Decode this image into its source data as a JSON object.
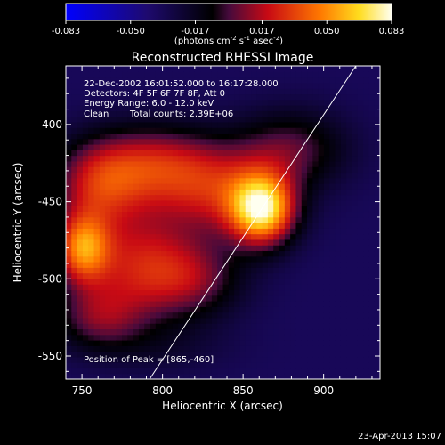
{
  "chart_data": {
    "type": "heatmap",
    "title": "Reconstructed RHESSI Image",
    "xlabel": "Heliocentric X (arcsec)",
    "ylabel": "Heliocentric Y (arcsec)",
    "xlim": [
      740,
      935
    ],
    "ylim": [
      -565,
      -362
    ],
    "x_ticks": [
      750,
      800,
      850,
      900
    ],
    "y_ticks": [
      -400,
      -450,
      -500,
      -550
    ],
    "colorbar": {
      "min": -0.083,
      "max": 0.083,
      "ticks": [
        "-0.083",
        "-0.050",
        "-0.017",
        "0.017",
        "0.050",
        "0.083"
      ],
      "label_main": "(photons cm",
      "label_sup1": "-2",
      "label_mid": " s",
      "label_sup2": "-1",
      "label_tail": " asec",
      "label_sup3": "-2",
      "label_close": ")"
    },
    "annotations": {
      "time": "22-Dec-2002 16:01:52.000 to 16:17:28.000",
      "detectors": "Detectors: 4F 5F 6F 7F 8F, Att 0",
      "energy": "Energy Range: 6.0 - 12.0 keV",
      "clean": "Clean",
      "counts": "Total counts: 2.39E+06",
      "peak": "Position of Peak = [865,-460]"
    },
    "peak": {
      "x": 865,
      "y": -460
    },
    "limb_line": [
      [
        792,
        -565
      ],
      [
        920,
        -362
      ]
    ],
    "sources": [
      {
        "x": 862,
        "y": -455,
        "amp": 0.095,
        "sx": 14,
        "sy": 16
      },
      {
        "x": 835,
        "y": -445,
        "amp": 0.045,
        "sx": 28,
        "sy": 20
      },
      {
        "x": 795,
        "y": -425,
        "amp": 0.05,
        "sx": 30,
        "sy": 18
      },
      {
        "x": 760,
        "y": -440,
        "amp": 0.045,
        "sx": 20,
        "sy": 20
      },
      {
        "x": 750,
        "y": -480,
        "amp": 0.07,
        "sx": 12,
        "sy": 16
      },
      {
        "x": 785,
        "y": -490,
        "amp": 0.05,
        "sx": 25,
        "sy": 25
      },
      {
        "x": 820,
        "y": -500,
        "amp": 0.035,
        "sx": 22,
        "sy": 18
      },
      {
        "x": 760,
        "y": -525,
        "amp": 0.035,
        "sx": 20,
        "sy": 15
      },
      {
        "x": 880,
        "y": -415,
        "amp": 0.035,
        "sx": 25,
        "sy": 18
      },
      {
        "x": 800,
        "y": -545,
        "amp": 0.01,
        "sx": 30,
        "sy": 12
      }
    ],
    "background": -0.035
  },
  "footer": {
    "timestamp": "23-Apr-2013 15:07"
  }
}
